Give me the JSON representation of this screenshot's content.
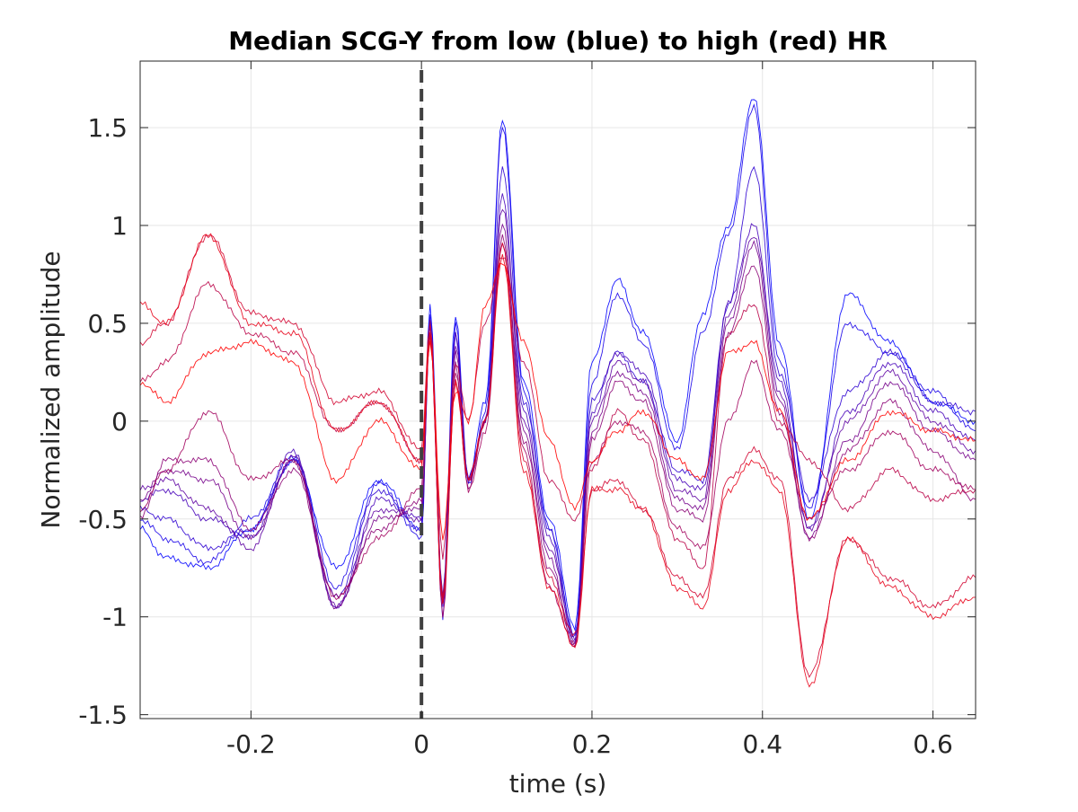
{
  "chart_data": {
    "type": "line",
    "title": "Median SCG-Y from low (blue) to high (red) HR",
    "xlabel": "time (s)",
    "ylabel": "Normalized amplitude",
    "xlim": [
      -0.33,
      0.65
    ],
    "ylim": [
      -1.52,
      1.84
    ],
    "xticks": [
      -0.2,
      0,
      0.2,
      0.4,
      0.6
    ],
    "xtick_labels": [
      "-0.2",
      "0",
      "0.2",
      "0.4",
      "0.6"
    ],
    "yticks": [
      -1.5,
      -1,
      -0.5,
      0,
      0.5,
      1,
      1.5
    ],
    "ytick_labels": [
      "-1.5",
      "-1",
      "-0.5",
      "0",
      "0.5",
      "1",
      "1.5"
    ],
    "grid": true,
    "legend": "none",
    "color_low": "#0000ff",
    "color_high": "#ff0000",
    "marker_line": {
      "x": 0,
      "style": "dashed",
      "color": "#404040"
    },
    "series": [
      {
        "x": [
          -0.33,
          -0.3,
          -0.25,
          -0.2,
          -0.15,
          -0.1,
          -0.05,
          0,
          0.01,
          0.025,
          0.04,
          0.055,
          0.075,
          0.095,
          0.12,
          0.15,
          0.18,
          0.2,
          0.23,
          0.26,
          0.3,
          0.33,
          0.36,
          0.39,
          0.42,
          0.455,
          0.5,
          0.55,
          0.6,
          0.65
        ],
        "y": [
          -0.55,
          -0.7,
          -0.75,
          -0.55,
          -0.2,
          -0.75,
          -0.3,
          -0.55,
          0.6,
          -0.9,
          0.55,
          -0.3,
          0.1,
          1.55,
          0.2,
          -0.5,
          -1.05,
          0.3,
          0.72,
          0.45,
          -0.1,
          0.55,
          1.0,
          1.66,
          0.4,
          -0.5,
          0.65,
          0.4,
          0.1,
          0.0
        ]
      },
      {
        "x": [
          -0.33,
          -0.3,
          -0.25,
          -0.2,
          -0.15,
          -0.1,
          -0.05,
          0,
          0.01,
          0.025,
          0.04,
          0.055,
          0.075,
          0.095,
          0.12,
          0.15,
          0.18,
          0.2,
          0.23,
          0.26,
          0.3,
          0.33,
          0.36,
          0.39,
          0.42,
          0.455,
          0.5,
          0.55,
          0.6,
          0.65
        ],
        "y": [
          -0.5,
          -0.6,
          -0.72,
          -0.5,
          -0.18,
          -0.85,
          -0.32,
          -0.6,
          0.55,
          -1.0,
          0.5,
          -0.32,
          0.05,
          1.5,
          0.15,
          -0.55,
          -1.1,
          0.2,
          0.65,
          0.4,
          -0.15,
          0.45,
          0.95,
          1.6,
          0.3,
          -0.45,
          0.5,
          0.35,
          0.15,
          -0.05
        ]
      },
      {
        "x": [
          -0.33,
          -0.3,
          -0.25,
          -0.2,
          -0.15,
          -0.1,
          -0.05,
          0,
          0.01,
          0.025,
          0.04,
          0.055,
          0.075,
          0.095,
          0.12,
          0.15,
          0.18,
          0.2,
          0.23,
          0.26,
          0.3,
          0.33,
          0.36,
          0.39,
          0.42,
          0.455,
          0.5,
          0.55,
          0.6,
          0.65
        ],
        "y": [
          -0.45,
          -0.5,
          -0.65,
          -0.55,
          -0.2,
          -0.9,
          -0.35,
          -0.55,
          0.5,
          -0.95,
          0.45,
          -0.3,
          0.0,
          1.3,
          0.1,
          -0.55,
          -1.1,
          0.1,
          0.35,
          0.2,
          -0.25,
          -0.3,
          0.6,
          1.3,
          0.25,
          -0.4,
          0.15,
          0.35,
          0.1,
          0.05
        ]
      },
      {
        "x": [
          -0.33,
          -0.3,
          -0.25,
          -0.2,
          -0.15,
          -0.1,
          -0.05,
          0,
          0.01,
          0.025,
          0.04,
          0.055,
          0.075,
          0.095,
          0.12,
          0.15,
          0.18,
          0.2,
          0.23,
          0.26,
          0.3,
          0.33,
          0.36,
          0.39,
          0.42,
          0.455,
          0.5,
          0.55,
          0.6,
          0.65
        ],
        "y": [
          -0.4,
          -0.35,
          -0.5,
          -0.6,
          -0.15,
          -0.95,
          -0.4,
          -0.5,
          0.5,
          -0.95,
          0.45,
          -0.3,
          0.0,
          1.15,
          0.05,
          -0.6,
          -1.12,
          0.05,
          0.35,
          0.25,
          -0.3,
          -0.35,
          0.6,
          1.0,
          0.2,
          -0.55,
          0.05,
          0.3,
          0.05,
          -0.1
        ]
      },
      {
        "x": [
          -0.33,
          -0.3,
          -0.25,
          -0.2,
          -0.15,
          -0.1,
          -0.05,
          0,
          0.01,
          0.025,
          0.04,
          0.055,
          0.075,
          0.095,
          0.12,
          0.15,
          0.18,
          0.2,
          0.23,
          0.26,
          0.3,
          0.33,
          0.36,
          0.39,
          0.42,
          0.455,
          0.5,
          0.55,
          0.6,
          0.65
        ],
        "y": [
          -0.35,
          -0.3,
          -0.45,
          -0.65,
          -0.18,
          -0.95,
          -0.45,
          -0.5,
          0.45,
          -0.9,
          0.4,
          -0.3,
          0.0,
          1.1,
          0.0,
          -0.65,
          -1.12,
          0.0,
          0.3,
          0.2,
          -0.35,
          -0.4,
          0.55,
          0.95,
          0.15,
          -0.55,
          0.0,
          0.25,
          0.0,
          -0.15
        ]
      },
      {
        "x": [
          -0.33,
          -0.3,
          -0.25,
          -0.2,
          -0.15,
          -0.1,
          -0.05,
          0,
          0.01,
          0.025,
          0.04,
          0.055,
          0.075,
          0.095,
          0.12,
          0.15,
          0.18,
          0.2,
          0.23,
          0.26,
          0.3,
          0.33,
          0.36,
          0.39,
          0.42,
          0.455,
          0.5,
          0.55,
          0.6,
          0.65
        ],
        "y": [
          -0.4,
          -0.25,
          -0.3,
          -0.6,
          -0.2,
          -0.95,
          -0.5,
          -0.45,
          0.45,
          -0.92,
          0.35,
          -0.3,
          0.0,
          1.0,
          -0.05,
          -0.7,
          -1.15,
          -0.05,
          0.25,
          0.15,
          -0.4,
          -0.45,
          0.5,
          0.9,
          0.1,
          -0.6,
          -0.1,
          0.2,
          -0.05,
          -0.2
        ]
      },
      {
        "x": [
          -0.33,
          -0.3,
          -0.25,
          -0.2,
          -0.15,
          -0.1,
          -0.05,
          0,
          0.01,
          0.025,
          0.04,
          0.055,
          0.075,
          0.095,
          0.12,
          0.15,
          0.18,
          0.2,
          0.23,
          0.26,
          0.3,
          0.33,
          0.36,
          0.39,
          0.42,
          0.455,
          0.5,
          0.55,
          0.6,
          0.65
        ],
        "y": [
          -0.5,
          -0.2,
          -0.2,
          -0.55,
          -0.25,
          -0.9,
          -0.55,
          -0.4,
          0.45,
          -0.95,
          0.3,
          -0.35,
          0.0,
          0.95,
          -0.1,
          -0.75,
          -1.15,
          -0.1,
          0.2,
          0.1,
          -0.45,
          -0.5,
          0.45,
          0.8,
          0.05,
          -0.6,
          -0.15,
          0.1,
          -0.15,
          -0.4
        ]
      },
      {
        "x": [
          -0.33,
          -0.3,
          -0.25,
          -0.2,
          -0.15,
          -0.1,
          -0.05,
          0,
          0.01,
          0.025,
          0.04,
          0.055,
          0.075,
          0.095,
          0.12,
          0.15,
          0.18,
          0.2,
          0.23,
          0.26,
          0.3,
          0.33,
          0.36,
          0.39,
          0.42,
          0.455,
          0.5,
          0.55,
          0.6,
          0.65
        ],
        "y": [
          -0.45,
          -0.25,
          0.05,
          -0.3,
          -0.2,
          -0.9,
          -0.6,
          -0.35,
          0.5,
          -1.0,
          0.25,
          -0.35,
          -0.05,
          0.9,
          -0.15,
          -0.85,
          -1.15,
          -0.2,
          0.0,
          -0.05,
          -0.55,
          -0.65,
          0.0,
          0.3,
          -0.05,
          -0.5,
          -0.25,
          -0.05,
          -0.25,
          -0.35
        ]
      },
      {
        "x": [
          -0.33,
          -0.3,
          -0.25,
          -0.2,
          -0.15,
          -0.1,
          -0.05,
          0,
          0.01,
          0.025,
          0.04,
          0.055,
          0.075,
          0.095,
          0.12,
          0.15,
          0.18,
          0.2,
          0.23,
          0.26,
          0.3,
          0.33,
          0.36,
          0.39,
          0.42,
          0.455,
          0.5,
          0.55,
          0.6,
          0.65
        ],
        "y": [
          0.2,
          0.3,
          0.7,
          0.45,
          0.35,
          -0.05,
          0.1,
          -0.2,
          0.45,
          -0.7,
          0.3,
          0.0,
          0.5,
          0.85,
          0.3,
          -0.3,
          -0.5,
          -0.25,
          0.05,
          -0.1,
          -0.6,
          -0.75,
          0.45,
          0.6,
          0.0,
          -0.2,
          -0.45,
          -0.25,
          -0.4,
          -0.35
        ]
      },
      {
        "x": [
          -0.33,
          -0.3,
          -0.25,
          -0.2,
          -0.15,
          -0.1,
          -0.05,
          0,
          0.01,
          0.025,
          0.04,
          0.055,
          0.075,
          0.095,
          0.12,
          0.15,
          0.18,
          0.2,
          0.23,
          0.26,
          0.3,
          0.33,
          0.36,
          0.39,
          0.42,
          0.455,
          0.5,
          0.55,
          0.6,
          0.65
        ],
        "y": [
          0.4,
          0.5,
          0.95,
          0.55,
          0.5,
          0.1,
          0.15,
          -0.15,
          0.5,
          -0.9,
          0.2,
          -0.3,
          0.0,
          0.9,
          -0.2,
          -0.8,
          -1.1,
          -0.35,
          -0.3,
          -0.45,
          -0.8,
          -0.9,
          -0.3,
          -0.15,
          -0.3,
          -1.3,
          -0.6,
          -0.8,
          -0.95,
          -0.8
        ]
      },
      {
        "x": [
          -0.33,
          -0.3,
          -0.25,
          -0.2,
          -0.15,
          -0.1,
          -0.05,
          0,
          0.01,
          0.025,
          0.04,
          0.055,
          0.075,
          0.095,
          0.12,
          0.15,
          0.18,
          0.2,
          0.23,
          0.26,
          0.3,
          0.33,
          0.36,
          0.39,
          0.42,
          0.455,
          0.5,
          0.55,
          0.6,
          0.65
        ],
        "y": [
          0.6,
          0.5,
          0.95,
          0.5,
          0.45,
          -0.05,
          0.1,
          -0.2,
          0.45,
          -0.95,
          0.2,
          -0.3,
          0.0,
          0.85,
          -0.25,
          -0.85,
          -1.15,
          -0.35,
          -0.35,
          -0.45,
          -0.85,
          -0.95,
          -0.35,
          -0.2,
          -0.35,
          -1.35,
          -0.6,
          -0.85,
          -1.0,
          -0.9
        ]
      },
      {
        "x": [
          -0.33,
          -0.3,
          -0.25,
          -0.2,
          -0.15,
          -0.1,
          -0.05,
          0,
          0.01,
          0.025,
          0.04,
          0.055,
          0.075,
          0.095,
          0.12,
          0.15,
          0.18,
          0.2,
          0.23,
          0.26,
          0.3,
          0.33,
          0.36,
          0.39,
          0.42,
          0.455,
          0.5,
          0.55,
          0.6,
          0.65
        ],
        "y": [
          0.2,
          0.1,
          0.35,
          0.4,
          0.3,
          -0.3,
          0.0,
          -0.25,
          0.4,
          -0.6,
          0.15,
          0.0,
          0.6,
          0.8,
          0.4,
          -0.1,
          -0.45,
          -0.2,
          -0.05,
          0.05,
          -0.2,
          -0.3,
          0.35,
          0.4,
          0.05,
          -0.5,
          -0.2,
          0.05,
          -0.05,
          -0.1
        ]
      }
    ]
  }
}
